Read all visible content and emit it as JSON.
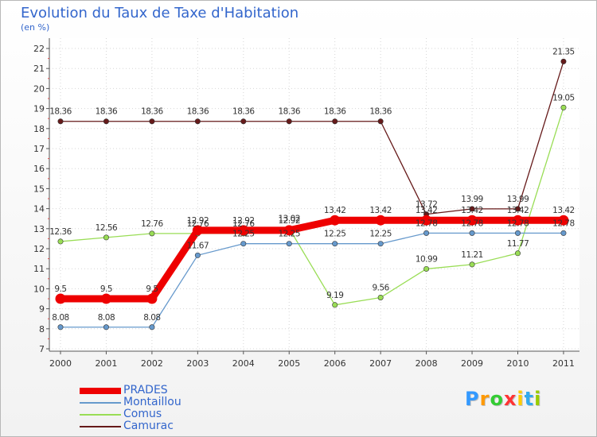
{
  "chart_data": {
    "type": "line",
    "title": "Evolution du Taux de Taxe d'Habitation",
    "unit_label": "(en %)",
    "categories": [
      "2000",
      "2001",
      "2002",
      "2003",
      "2004",
      "2005",
      "2006",
      "2007",
      "2008",
      "2009",
      "2010",
      "2011"
    ],
    "ylim": [
      7,
      22
    ],
    "yticks": [
      "7",
      "8",
      "9",
      "10",
      "11",
      "12",
      "13",
      "14",
      "15",
      "16",
      "17",
      "18",
      "19",
      "20",
      "21",
      "22"
    ],
    "series": [
      {
        "name": "Camurac",
        "color": "#661a1a",
        "values": [
          18.36,
          18.36,
          18.36,
          18.36,
          18.36,
          18.36,
          18.36,
          18.36,
          13.72,
          13.99,
          13.99,
          21.35
        ],
        "labels": [
          "18.36",
          "18.36",
          "18.36",
          "18.36",
          "18.36",
          "18.36",
          "18.36",
          "18.36",
          "13.72",
          "13.99",
          "13.99",
          "21.35"
        ]
      },
      {
        "name": "Comus",
        "color": "#99dd55",
        "values": [
          12.36,
          12.56,
          12.76,
          12.76,
          12.76,
          13.02,
          9.19,
          9.56,
          10.99,
          11.21,
          11.77,
          19.05
        ],
        "labels": [
          "12.36",
          "12.56",
          "12.76",
          "12.76",
          "12.76",
          "13.02",
          "9.19",
          "9.56",
          "10.99",
          "11.21",
          "11.77",
          "19.05"
        ]
      },
      {
        "name": "Montaillou",
        "color": "#6699cc",
        "values": [
          8.08,
          8.08,
          8.08,
          11.67,
          12.25,
          12.25,
          12.25,
          12.25,
          12.78,
          12.78,
          12.78,
          12.78
        ],
        "labels": [
          "8.08",
          "8.08",
          "8.08",
          "11.67",
          "12.25",
          "12.25",
          "12.25",
          "12.25",
          "12.78",
          "12.78",
          "12.78",
          "12.78"
        ]
      },
      {
        "name": "PRADES",
        "color": "#ee0000",
        "values": [
          9.5,
          9.5,
          9.5,
          12.92,
          12.92,
          12.92,
          13.42,
          13.42,
          13.42,
          13.42,
          13.42,
          13.42
        ],
        "labels": [
          "9.5",
          "9.5",
          "9.5",
          "12.92",
          "12.92",
          "12.92",
          "13.42",
          "13.42",
          "13.42",
          "13.42",
          "13.42",
          "13.42"
        ]
      }
    ]
  },
  "legend": [
    {
      "name": "PRADES",
      "color": "#ee0000"
    },
    {
      "name": "Montaillou",
      "color": "#6699cc"
    },
    {
      "name": "Comus",
      "color": "#99dd55"
    },
    {
      "name": "Camurac",
      "color": "#661a1a"
    }
  ],
  "logo": {
    "letters": [
      "P",
      "r",
      "o",
      "x",
      "i",
      "t",
      "i"
    ],
    "colors": [
      "#3399ff",
      "#ff9900",
      "#33cc33",
      "#ff3333",
      "#ffcc00",
      "#33aaee",
      "#99cc00"
    ]
  }
}
